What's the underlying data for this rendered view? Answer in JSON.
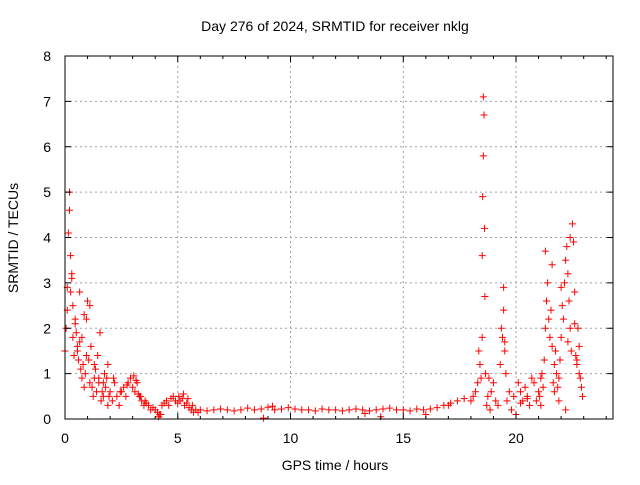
{
  "chart_data": {
    "type": "scatter",
    "title": "Day 276 of 2024, SRMTID for receiver nklg",
    "xlabel": "GPS time / hours",
    "ylabel": "SRMTID / TECUs",
    "xlim": [
      0,
      24.3
    ],
    "ylim": [
      0,
      8
    ],
    "xticks": [
      0,
      5,
      10,
      15,
      20
    ],
    "xtick_labels": [
      "0",
      "5",
      "10",
      "15",
      "20"
    ],
    "yticks": [
      0,
      1,
      2,
      3,
      4,
      5,
      6,
      7,
      8
    ],
    "ytick_labels": [
      "0",
      "1",
      "2",
      "3",
      "4",
      "5",
      "6",
      "7",
      "8"
    ],
    "grid": true,
    "marker": "+",
    "series": [
      {
        "name": "SRMTID",
        "color": "#ff0000",
        "x": [
          0.0,
          0.05,
          0.1,
          0.15,
          0.2,
          0.25,
          0.3,
          0.35,
          0.4,
          0.45,
          0.5,
          0.55,
          0.6,
          0.65,
          0.7,
          0.75,
          0.8,
          0.85,
          0.9,
          0.95,
          1.0,
          1.05,
          1.1,
          1.15,
          1.2,
          1.25,
          1.3,
          1.35,
          1.4,
          1.45,
          1.5,
          1.55,
          1.6,
          1.65,
          1.7,
          1.75,
          1.8,
          1.85,
          1.9,
          1.95,
          0.1,
          0.2,
          0.25,
          0.3,
          0.35,
          0.45,
          0.55,
          0.65,
          0.75,
          0.85,
          0.95,
          1.1,
          1.3,
          1.5,
          1.7,
          1.9,
          2.0,
          2.1,
          2.2,
          2.3,
          2.4,
          2.5,
          2.6,
          2.7,
          2.8,
          2.9,
          3.0,
          3.1,
          3.2,
          3.3,
          3.4,
          3.5,
          3.6,
          3.7,
          3.8,
          3.9,
          4.0,
          4.1,
          4.2,
          4.3,
          4.4,
          4.5,
          4.6,
          4.7,
          4.8,
          4.9,
          5.0,
          5.1,
          5.2,
          5.3,
          5.4,
          5.5,
          5.6,
          5.7,
          5.8,
          5.9,
          6.0,
          6.3,
          6.6,
          6.9,
          7.2,
          7.5,
          7.8,
          8.1,
          8.4,
          8.7,
          9.0,
          9.3,
          9.6,
          9.9,
          10.2,
          10.5,
          10.8,
          11.1,
          11.4,
          11.7,
          12.0,
          12.3,
          12.6,
          12.9,
          13.2,
          13.5,
          13.8,
          14.1,
          14.4,
          14.7,
          15.0,
          15.3,
          15.6,
          15.9,
          16.2,
          16.5,
          16.8,
          17.1,
          17.4,
          17.7,
          2.15,
          2.45,
          2.75,
          3.05,
          3.15,
          3.25,
          3.35,
          3.55,
          4.15,
          4.25,
          5.05,
          5.25,
          5.45,
          5.65,
          8.8,
          9.2,
          13.3,
          14.0,
          16.0,
          17.0,
          18.0,
          18.1,
          18.2,
          18.3,
          18.35,
          18.4,
          18.45,
          18.5,
          18.5,
          18.52,
          18.55,
          18.55,
          18.58,
          18.6,
          18.62,
          18.65,
          18.7,
          18.75,
          18.8,
          18.85,
          18.9,
          19.0,
          19.1,
          19.2,
          19.3,
          19.35,
          19.4,
          19.45,
          19.5,
          19.55,
          19.6,
          19.7,
          19.8,
          19.9,
          20.0,
          20.1,
          20.2,
          20.3,
          20.4,
          20.5,
          20.6,
          20.7,
          20.8,
          20.9,
          21.0,
          21.05,
          21.1,
          21.15,
          21.2,
          21.25,
          21.3,
          21.35,
          21.4,
          21.45,
          21.5,
          21.55,
          21.6,
          21.65,
          21.7,
          21.75,
          21.8,
          21.85,
          21.9,
          21.95,
          22.0,
          22.05,
          22.1,
          22.15,
          22.2,
          22.25,
          22.3,
          22.35,
          22.4,
          22.45,
          22.5,
          22.55,
          22.6,
          22.65,
          22.7,
          22.75,
          22.8,
          22.85,
          22.9,
          22.95,
          21.3,
          21.6,
          21.9,
          22.2,
          22.4,
          22.6,
          22.8,
          19.45,
          19.5,
          20.2,
          20.5,
          21.1,
          21.7,
          22.0,
          22.3,
          22.7
        ],
        "y": [
          1.5,
          2.0,
          2.4,
          4.1,
          5.0,
          2.8,
          3.1,
          1.8,
          1.4,
          2.2,
          1.9,
          1.6,
          1.3,
          1.7,
          1.1,
          0.9,
          1.2,
          2.3,
          1.0,
          1.4,
          2.6,
          1.3,
          0.8,
          1.6,
          0.7,
          0.5,
          0.9,
          1.1,
          0.6,
          1.4,
          0.8,
          1.9,
          0.4,
          0.6,
          0.5,
          1.0,
          0.7,
          0.9,
          0.3,
          0.5,
          2.9,
          4.6,
          3.6,
          3.2,
          2.5,
          2.1,
          1.5,
          2.8,
          1.8,
          0.7,
          2.2,
          2.5,
          1.2,
          0.9,
          0.8,
          1.2,
          0.6,
          0.4,
          0.8,
          0.5,
          0.3,
          0.6,
          0.7,
          0.5,
          0.8,
          0.9,
          0.7,
          0.6,
          0.8,
          0.5,
          0.4,
          0.3,
          0.35,
          0.3,
          0.2,
          0.25,
          0.2,
          0.15,
          0.1,
          0.3,
          0.35,
          0.4,
          0.3,
          0.45,
          0.5,
          0.4,
          0.35,
          0.4,
          0.45,
          0.3,
          0.35,
          0.25,
          0.2,
          0.15,
          0.2,
          0.15,
          0.2,
          0.18,
          0.2,
          0.22,
          0.2,
          0.18,
          0.2,
          0.24,
          0.2,
          0.22,
          0.26,
          0.2,
          0.22,
          0.25,
          0.22,
          0.2,
          0.2,
          0.18,
          0.22,
          0.2,
          0.2,
          0.18,
          0.2,
          0.22,
          0.2,
          0.18,
          0.2,
          0.22,
          0.24,
          0.2,
          0.2,
          0.18,
          0.22,
          0.2,
          0.22,
          0.25,
          0.3,
          0.35,
          0.4,
          0.45,
          0.9,
          0.6,
          0.75,
          0.95,
          0.85,
          0.55,
          0.5,
          0.4,
          0.05,
          0.1,
          0.5,
          0.55,
          0.45,
          0.3,
          0.02,
          0.28,
          0.12,
          0.05,
          0.1,
          0.3,
          0.4,
          0.5,
          0.6,
          0.8,
          1.5,
          1.2,
          0.9,
          1.8,
          3.6,
          4.9,
          5.8,
          7.1,
          6.7,
          4.2,
          2.7,
          1.0,
          0.3,
          0.5,
          0.9,
          0.2,
          0.6,
          0.8,
          0.4,
          0.3,
          1.2,
          2.0,
          1.8,
          2.4,
          1.5,
          1.0,
          0.4,
          0.6,
          0.2,
          0.5,
          0.1,
          0.8,
          0.6,
          0.4,
          0.7,
          0.5,
          0.3,
          0.9,
          0.8,
          0.4,
          0.6,
          0.5,
          0.3,
          1.0,
          0.7,
          1.3,
          2.0,
          2.6,
          3.0,
          2.2,
          1.8,
          2.4,
          1.6,
          0.8,
          1.2,
          1.5,
          1.0,
          0.7,
          0.9,
          1.3,
          1.8,
          2.5,
          2.2,
          3.0,
          3.5,
          3.8,
          3.2,
          2.6,
          2.0,
          1.5,
          4.3,
          3.9,
          2.8,
          1.4,
          1.2,
          2.0,
          1.6,
          0.9,
          0.7,
          0.5,
          3.7,
          3.4,
          0.4,
          0.2,
          4.0,
          2.1,
          1.0,
          2.9,
          1.7,
          0.35,
          0.45,
          0.9,
          0.6,
          2.9,
          1.7,
          1.3
        ]
      }
    ]
  }
}
